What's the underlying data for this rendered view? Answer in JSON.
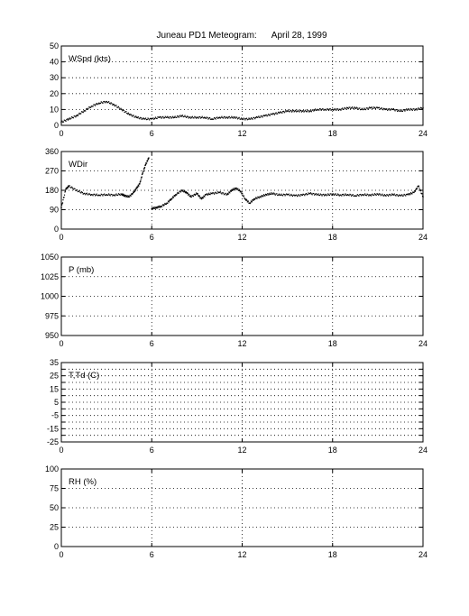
{
  "page_title": "Juneau PD1 Meteogram:      April 28, 1999",
  "chart_data": [
    {
      "type": "scatter",
      "panel_label": "WSpd (kts)",
      "xlim": [
        0,
        24
      ],
      "xticks": [
        "0",
        "6",
        "12",
        "18",
        "24"
      ],
      "ylim": [
        0,
        50
      ],
      "yticks": [
        "0",
        "10",
        "20",
        "30",
        "40",
        "50"
      ],
      "grid": true,
      "series": [
        {
          "x": [
            0,
            0.5,
            1,
            1.5,
            2,
            2.5,
            3,
            3.5,
            4,
            4.5,
            5,
            5.5,
            6,
            6.5,
            7,
            7.5,
            8,
            8.5,
            9,
            9.5,
            10,
            10.5,
            11,
            11.5,
            12,
            12.5,
            13,
            13.5,
            14,
            14.5,
            15,
            15.5,
            16,
            16.5,
            17,
            17.5,
            18,
            18.5,
            19,
            19.5,
            20,
            20.5,
            21,
            21.5,
            22,
            22.5,
            23,
            23.5,
            24
          ],
          "values": [
            2,
            4,
            6,
            9,
            12,
            14,
            15,
            13,
            10,
            7,
            5,
            4,
            4,
            5,
            5,
            5,
            6,
            5,
            5,
            5,
            4,
            5,
            5,
            5,
            4,
            4,
            5,
            6,
            7,
            8,
            9,
            9,
            9,
            9,
            10,
            10,
            10,
            10,
            11,
            11,
            10,
            11,
            11,
            10,
            10,
            9,
            10,
            10,
            11
          ]
        }
      ]
    },
    {
      "type": "scatter",
      "panel_label": "WDir",
      "xlim": [
        0,
        24
      ],
      "xticks": [
        "0",
        "6",
        "12",
        "18",
        "24"
      ],
      "ylim": [
        0,
        360
      ],
      "yticks": [
        "0",
        "90",
        "180",
        "270",
        "360"
      ],
      "grid": true,
      "series": [
        {
          "x": [
            0,
            0.3,
            0.5,
            1,
            1.5,
            2,
            2.5,
            3,
            3.5,
            4,
            4.2,
            4.5,
            4.8,
            5,
            5.2,
            5.4,
            5.6,
            5.8,
            6,
            6.3,
            6.6,
            7,
            7.3,
            7.6,
            8,
            8.3,
            8.6,
            9,
            9.3,
            9.6,
            10,
            10.5,
            11,
            11.3,
            11.6,
            11.9,
            12.2,
            12.5,
            12.8,
            13.2,
            13.6,
            14,
            14.5,
            15,
            15.5,
            16,
            16.5,
            17,
            17.5,
            18,
            18.5,
            19,
            19.5,
            20,
            20.5,
            21,
            21.5,
            22,
            22.5,
            23,
            23.4,
            23.7,
            24
          ],
          "values": [
            100,
            185,
            200,
            180,
            165,
            160,
            158,
            160,
            158,
            162,
            155,
            150,
            170,
            190,
            210,
            260,
            300,
            330,
            95,
            100,
            105,
            120,
            140,
            160,
            180,
            170,
            150,
            165,
            140,
            160,
            165,
            170,
            160,
            180,
            190,
            175,
            140,
            120,
            140,
            150,
            160,
            165,
            158,
            160,
            155,
            158,
            165,
            160,
            158,
            162,
            158,
            160,
            155,
            160,
            158,
            162,
            156,
            160,
            155,
            160,
            170,
            200,
            150
          ]
        }
      ]
    },
    {
      "type": "scatter",
      "panel_label": "P (mb)",
      "xlim": [
        0,
        24
      ],
      "xticks": [
        "0",
        "6",
        "12",
        "18",
        "24"
      ],
      "ylim": [
        950,
        1050
      ],
      "yticks": [
        "950",
        "975",
        "1000",
        "1025",
        "1050"
      ],
      "grid": true,
      "series": []
    },
    {
      "type": "scatter",
      "panel_label": "T,Td (C)",
      "xlim": [
        0,
        24
      ],
      "xticks": [
        "0",
        "6",
        "12",
        "18",
        "24"
      ],
      "ylim": [
        -25,
        35
      ],
      "yticks": [
        "-25",
        "-15",
        "-5",
        "5",
        "15",
        "25",
        "35"
      ],
      "ygrid_values": [
        -25,
        -20,
        -15,
        -10,
        -5,
        0,
        5,
        10,
        15,
        20,
        25,
        30,
        35
      ],
      "ytick_values": [
        -25,
        -15,
        -5,
        5,
        15,
        25,
        35
      ],
      "grid": true,
      "series": []
    },
    {
      "type": "scatter",
      "panel_label": "RH (%)",
      "xlim": [
        0,
        24
      ],
      "xticks": [
        "0",
        "6",
        "12",
        "18",
        "24"
      ],
      "ylim": [
        0,
        100
      ],
      "yticks": [
        "0",
        "25",
        "50",
        "75",
        "100"
      ],
      "grid": true,
      "series": []
    }
  ]
}
